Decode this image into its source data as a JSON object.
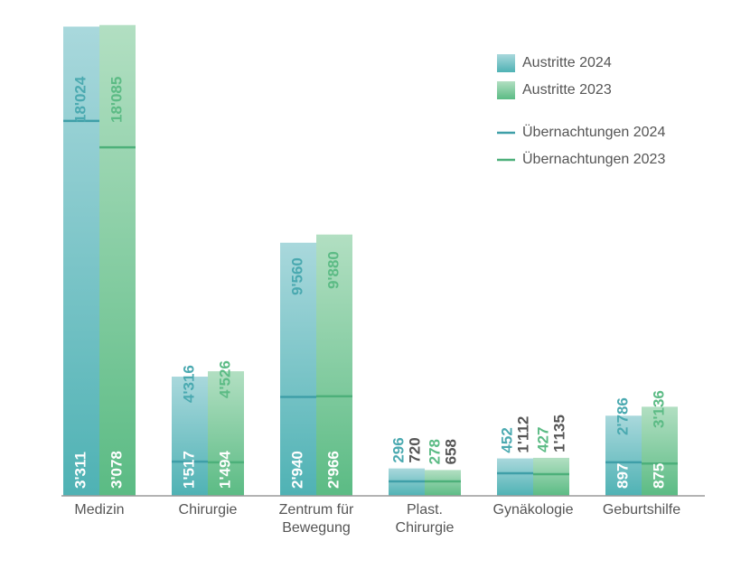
{
  "chart_data": {
    "type": "bar",
    "categories": [
      [
        "Medizin"
      ],
      [
        "Chirurgie"
      ],
      [
        "Zentrum für",
        "Bewegung"
      ],
      [
        "Plast.",
        "Chirurgie"
      ],
      [
        "Gynäkologie"
      ],
      [
        "Geburtshilfe"
      ]
    ],
    "series": [
      {
        "name": "Austritte 2024",
        "values": [
          3311,
          1517,
          2940,
          296,
          452,
          897
        ],
        "labels": [
          "3'311",
          "1'517",
          "2'940",
          "296",
          "452",
          "897"
        ]
      },
      {
        "name": "Austritte 2023",
        "values": [
          3078,
          1494,
          2966,
          278,
          427,
          875
        ],
        "labels": [
          "3'078",
          "1'494",
          "2'966",
          "278",
          "427",
          "875"
        ]
      }
    ],
    "line_series": [
      {
        "name": "Übernachtungen 2024",
        "values": [
          18024,
          4316,
          9560,
          720,
          1112,
          2786
        ],
        "labels": [
          "18'024",
          "4'316",
          "9'560",
          "720",
          "1'112",
          "2'786"
        ]
      },
      {
        "name": "Übernachtungen 2023",
        "values": [
          18085,
          4526,
          9880,
          658,
          1135,
          3136
        ],
        "labels": [
          "18'085",
          "4'526",
          "9'880",
          "658",
          "1'135",
          "3'136"
        ]
      }
    ],
    "legend_position": "top-right",
    "grid": false,
    "colors": {
      "austritte_2024_top": "#a9d8dc",
      "austritte_2024_bottom": "#4fb2b4",
      "austritte_2023_top": "#b2dfc2",
      "austritte_2023_bottom": "#5bbb84",
      "line_2024": "#3f9fa8",
      "line_2023": "#4db07a",
      "label_2024": "#4aa9b0",
      "label_2023": "#5cbb85",
      "label_dark": "#555555",
      "axis": "#9a9a9a"
    }
  }
}
